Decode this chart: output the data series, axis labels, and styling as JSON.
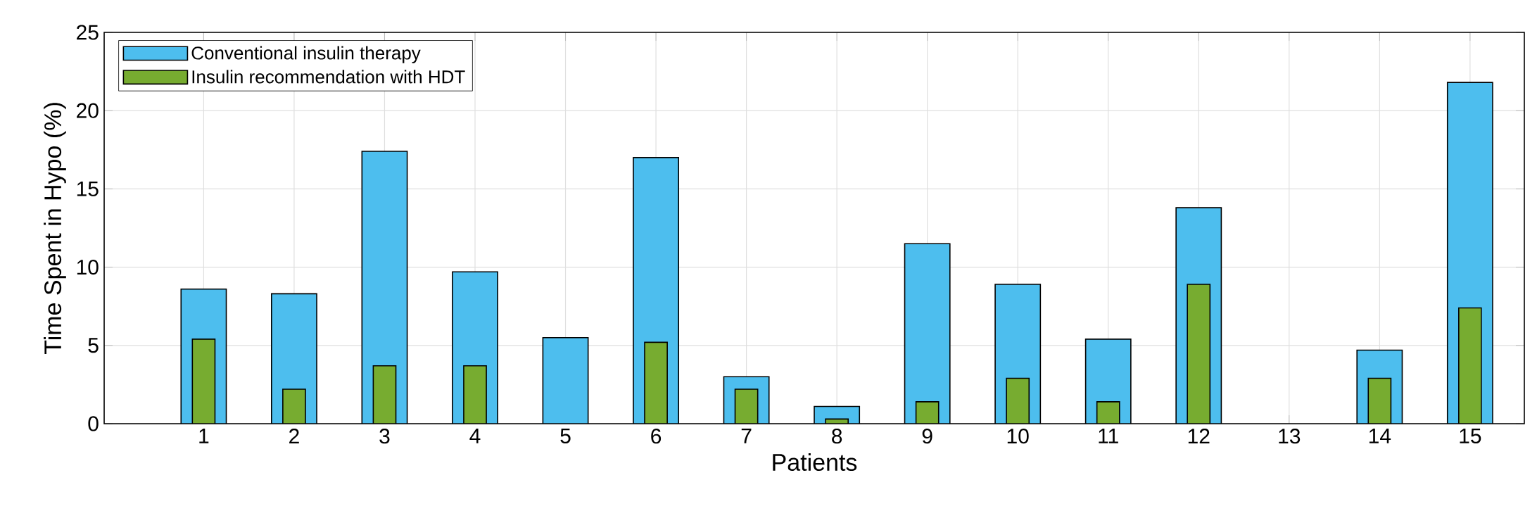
{
  "chart_data": {
    "type": "bar",
    "xlabel": "Patients",
    "ylabel": "Time Spent in Hypo (%)",
    "categories": [
      "1",
      "2",
      "3",
      "4",
      "5",
      "6",
      "7",
      "8",
      "9",
      "10",
      "11",
      "12",
      "13",
      "14",
      "15"
    ],
    "series": [
      {
        "name": "Conventional insulin therapy",
        "color": "#4dbeee",
        "values": [
          8.6,
          8.3,
          17.4,
          9.7,
          5.5,
          17.0,
          3.0,
          1.1,
          11.5,
          8.9,
          5.4,
          13.8,
          null,
          4.7,
          21.8
        ]
      },
      {
        "name": "Insulin recommendation with HDT",
        "color": "#77ac30",
        "values": [
          5.4,
          2.2,
          3.7,
          3.7,
          null,
          5.2,
          2.2,
          0.3,
          1.4,
          2.9,
          1.4,
          8.9,
          null,
          2.9,
          7.4
        ]
      }
    ],
    "ylim": [
      0,
      25
    ],
    "yticks": [
      0,
      5,
      10,
      15,
      20,
      25
    ],
    "grid": true,
    "legend": "top left"
  }
}
